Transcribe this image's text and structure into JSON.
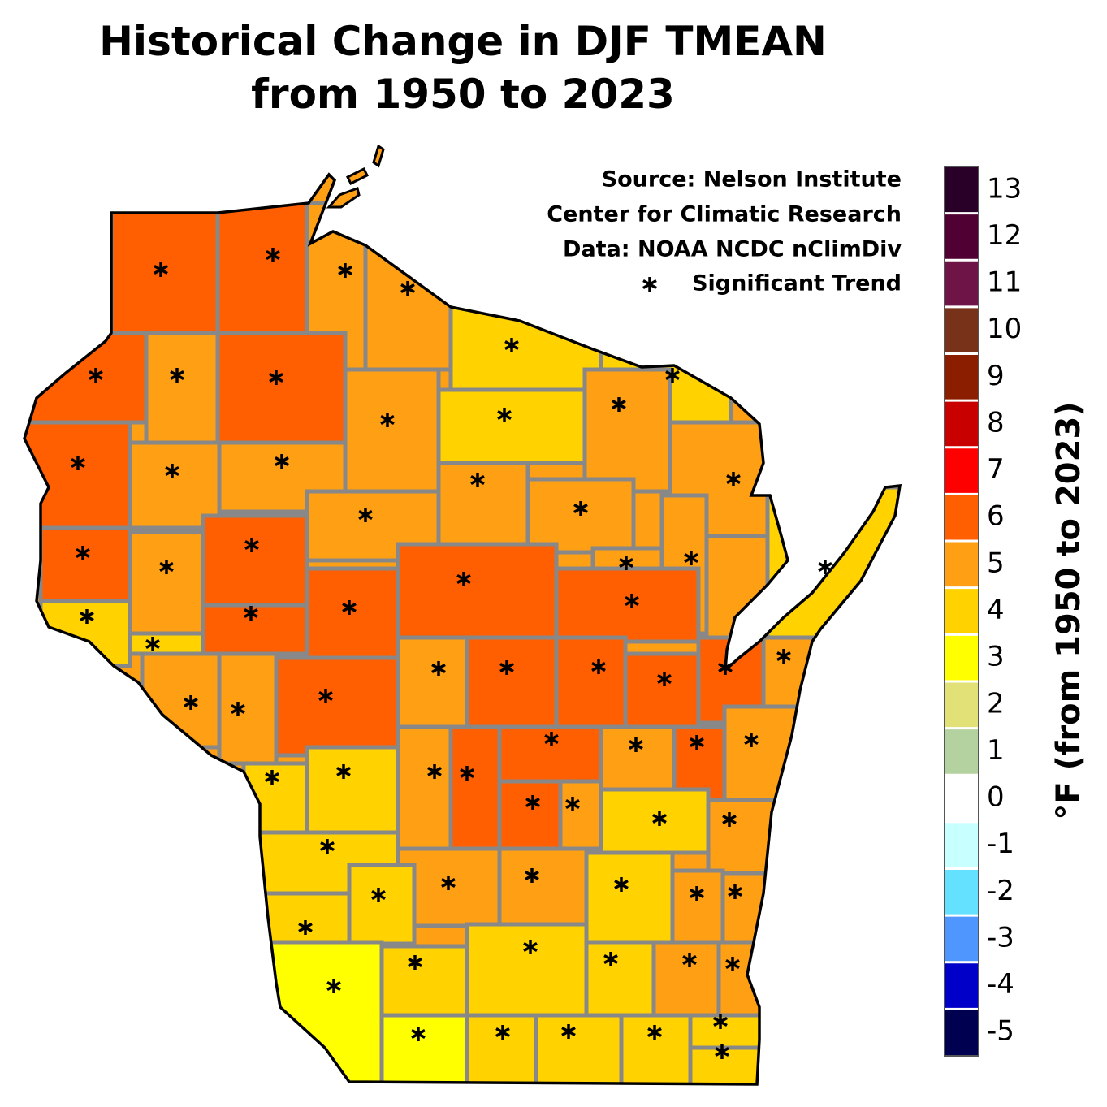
{
  "chart_data": {
    "type": "choropleth",
    "title": [
      "Historical Change in DJF TMEAN",
      "from 1950 to 2023"
    ],
    "source": [
      "Source:  Nelson Institute",
      "Center for Climatic Research",
      "Data: NOAA NCDC nClimDiv"
    ],
    "significance_label": "Significant Trend",
    "colorbar": {
      "label": "°F (from 1950 to 2023)",
      "levels": [
        -5,
        -4,
        -3,
        -2,
        -1,
        0,
        1,
        2,
        3,
        4,
        5,
        6,
        7,
        8,
        9,
        10,
        11,
        12,
        13
      ],
      "colors": [
        "#000050",
        "#0000c8",
        "#5096ff",
        "#64e1ff",
        "#c8ffff",
        "#ffffff",
        "#b4d2a0",
        "#e1e178",
        "#ffff00",
        "#ffd200",
        "#ffa014",
        "#ff5f00",
        "#ff0000",
        "#c80000",
        "#8c1e00",
        "#783219",
        "#6e1446",
        "#500032",
        "#280028"
      ]
    },
    "regions": [
      {
        "value": 6.3,
        "significant": true
      },
      {
        "value": 6.3,
        "significant": true
      },
      {
        "value": 5.4,
        "significant": true
      },
      {
        "value": 5.3,
        "significant": true
      },
      {
        "value": 4.5,
        "significant": true
      },
      {
        "value": 4.4,
        "significant": true
      },
      {
        "value": 6.3,
        "significant": true
      },
      {
        "value": 5.4,
        "significant": true
      },
      {
        "value": 6.3,
        "significant": true
      },
      {
        "value": 5.5,
        "significant": true
      },
      {
        "value": 4.5,
        "significant": true
      },
      {
        "value": 5.4,
        "significant": true
      },
      {
        "value": 5.4,
        "significant": true
      },
      {
        "value": 6.3,
        "significant": true
      },
      {
        "value": 5.5,
        "significant": true
      },
      {
        "value": 5.4,
        "significant": true
      },
      {
        "value": 5.5,
        "significant": true
      },
      {
        "value": 5.4,
        "significant": true
      },
      {
        "value": 5.5,
        "significant": true
      },
      {
        "value": 5.5,
        "significant": true
      },
      {
        "value": 5.4,
        "significant": true
      },
      {
        "value": 6.3,
        "significant": true
      },
      {
        "value": 5.5,
        "significant": true
      },
      {
        "value": 6.3,
        "significant": true
      },
      {
        "value": 6.3,
        "significant": true
      },
      {
        "value": 6.3,
        "significant": true
      },
      {
        "value": 6.3,
        "significant": true
      },
      {
        "value": 4.5,
        "significant": true
      },
      {
        "value": 4.5,
        "significant": true
      },
      {
        "value": 6.3,
        "significant": true
      },
      {
        "value": 5.5,
        "significant": true
      },
      {
        "value": 5.5,
        "significant": true
      },
      {
        "value": 6.3,
        "significant": true
      },
      {
        "value": 5.5,
        "significant": true
      },
      {
        "value": 6.3,
        "significant": true
      },
      {
        "value": 6.3,
        "significant": true
      },
      {
        "value": 6.3,
        "significant": true
      },
      {
        "value": 6.3,
        "significant": true
      },
      {
        "value": 5.5,
        "significant": true
      },
      {
        "value": 4.6,
        "significant": true
      },
      {
        "value": 4.6,
        "significant": true
      },
      {
        "value": 4.6,
        "significant": true
      },
      {
        "value": 5.5,
        "significant": true
      },
      {
        "value": 6.3,
        "significant": true
      },
      {
        "value": 6.3,
        "significant": true
      },
      {
        "value": 5.5,
        "significant": true
      },
      {
        "value": 6.3,
        "significant": true
      },
      {
        "value": 5.5,
        "significant": true
      },
      {
        "value": 6.3,
        "significant": true
      },
      {
        "value": 5.5,
        "significant": true
      },
      {
        "value": 4.6,
        "significant": true
      },
      {
        "value": 5.5,
        "significant": true
      },
      {
        "value": 4.6,
        "significant": true
      },
      {
        "value": 5.5,
        "significant": true
      },
      {
        "value": 5.5,
        "significant": true
      },
      {
        "value": 4.6,
        "significant": true
      },
      {
        "value": 5.5,
        "significant": true
      },
      {
        "value": 5.5,
        "significant": true
      },
      {
        "value": 4.6,
        "significant": true
      },
      {
        "value": 4.6,
        "significant": true
      },
      {
        "value": 3.7,
        "significant": true
      },
      {
        "value": 4.6,
        "significant": true
      },
      {
        "value": 4.6,
        "significant": true
      },
      {
        "value": 4.6,
        "significant": true
      },
      {
        "value": 5.5,
        "significant": true
      },
      {
        "value": 5.5,
        "significant": true
      },
      {
        "value": 3.7,
        "significant": true
      },
      {
        "value": 4.6,
        "significant": true
      },
      {
        "value": 4.6,
        "significant": true
      },
      {
        "value": 4.6,
        "significant": true
      },
      {
        "value": 4.6,
        "significant": true
      },
      {
        "value": 4.6,
        "significant": true
      }
    ]
  }
}
